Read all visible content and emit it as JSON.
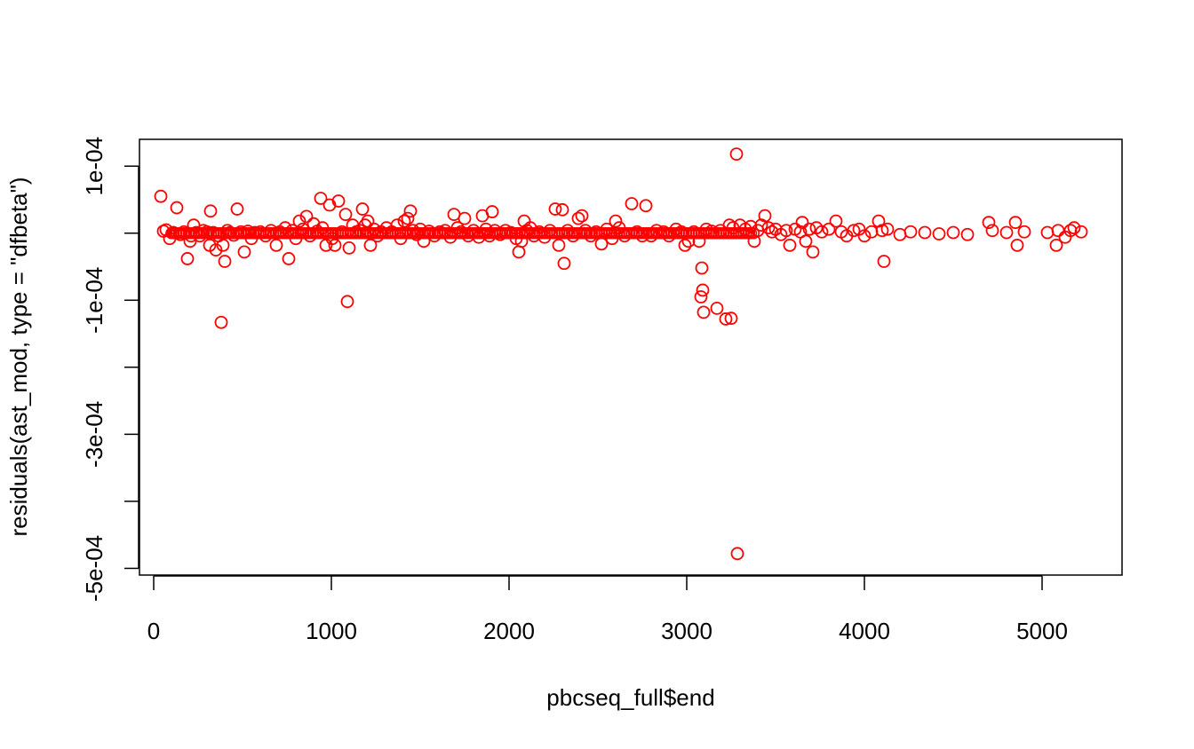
{
  "chart_data": {
    "type": "scatter",
    "title": "",
    "xlabel": "pbcseq_full$end",
    "ylabel": "residuals(ast_mod, type = \"dfbeta\")",
    "xlim": [
      -80,
      5450
    ],
    "ylim": [
      -0.00051,
      0.00014
    ],
    "x_ticks": [
      0,
      1000,
      2000,
      3000,
      4000,
      5000
    ],
    "x_tick_labels": [
      "0",
      "1000",
      "2000",
      "3000",
      "4000",
      "5000"
    ],
    "y_ticks": [
      -0.0005,
      -0.0004,
      -0.0003,
      -0.0002,
      -0.0001,
      0,
      0.0001
    ],
    "y_tick_labels": [
      "-5e-04",
      "",
      "-3e-04",
      "",
      "-1e-04",
      "",
      "1e-04"
    ],
    "grid": false,
    "legend": "none",
    "point_color": "#ff0000",
    "series": [
      {
        "points": [
          [
            40,
            5.5e-05
          ],
          [
            55,
            3e-06
          ],
          [
            70,
            5e-06
          ],
          [
            90,
            -8e-06
          ],
          [
            110,
            1e-06
          ],
          [
            130,
            3.8e-05
          ],
          [
            150,
            -2e-06
          ],
          [
            170,
            2e-06
          ],
          [
            190,
            -3.8e-05
          ],
          [
            205,
            -1.2e-05
          ],
          [
            210,
            -4e-06
          ],
          [
            225,
            1.2e-05
          ],
          [
            240,
            1e-06
          ],
          [
            260,
            -4e-06
          ],
          [
            280,
            4e-06
          ],
          [
            300,
            2e-06
          ],
          [
            315,
            -1.8e-05
          ],
          [
            320,
            3.3e-05
          ],
          [
            335,
            1e-06
          ],
          [
            350,
            -2.5e-05
          ],
          [
            365,
            -4e-06
          ],
          [
            380,
            -0.000133
          ],
          [
            390,
            -1.8e-05
          ],
          [
            400,
            -4.2e-05
          ],
          [
            415,
            4e-06
          ],
          [
            430,
            1e-06
          ],
          [
            450,
            -3e-06
          ],
          [
            470,
            3.6e-05
          ],
          [
            490,
            2e-06
          ],
          [
            510,
            -2.8e-05
          ],
          [
            530,
            3e-06
          ],
          [
            550,
            -8e-06
          ],
          [
            570,
            1e-06
          ],
          [
            600,
            2e-06
          ],
          [
            630,
            -4e-06
          ],
          [
            660,
            4e-06
          ],
          [
            690,
            -1.8e-05
          ],
          [
            710,
            2e-06
          ],
          [
            740,
            8e-06
          ],
          [
            760,
            -3.8e-05
          ],
          [
            780,
            4e-06
          ],
          [
            800,
            -8e-06
          ],
          [
            820,
            1.8e-05
          ],
          [
            840,
            6e-06
          ],
          [
            860,
            2.5e-05
          ],
          [
            880,
            -4e-06
          ],
          [
            900,
            1.4e-05
          ],
          [
            920,
            3e-06
          ],
          [
            940,
            5.2e-05
          ],
          [
            950,
            8e-06
          ],
          [
            970,
            -1.8e-05
          ],
          [
            990,
            4.2e-05
          ],
          [
            1005,
            -8e-06
          ],
          [
            1020,
            -1.8e-05
          ],
          [
            1040,
            4.8e-05
          ],
          [
            1060,
            2e-06
          ],
          [
            1080,
            2.8e-05
          ],
          [
            1090,
            -0.000102
          ],
          [
            1100,
            -2.2e-05
          ],
          [
            1120,
            1.2e-05
          ],
          [
            1140,
            2e-06
          ],
          [
            1160,
            4e-06
          ],
          [
            1175,
            3.6e-05
          ],
          [
            1190,
            1.2e-05
          ],
          [
            1205,
            1.8e-05
          ],
          [
            1220,
            -1.8e-05
          ],
          [
            1240,
            6e-06
          ],
          [
            1260,
            -4e-06
          ],
          [
            1280,
            2e-06
          ],
          [
            1310,
            8e-06
          ],
          [
            1340,
            2e-06
          ],
          [
            1370,
            1.2e-05
          ],
          [
            1390,
            -8e-06
          ],
          [
            1410,
            1.8e-05
          ],
          [
            1430,
            2.2e-05
          ],
          [
            1445,
            3.3e-05
          ],
          [
            1460,
            4e-06
          ],
          [
            1480,
            -2e-06
          ],
          [
            1500,
            6e-06
          ],
          [
            1520,
            -1.2e-05
          ],
          [
            1550,
            3e-06
          ],
          [
            1580,
            -4e-06
          ],
          [
            1610,
            2e-06
          ],
          [
            1640,
            4e-06
          ],
          [
            1670,
            -6e-06
          ],
          [
            1690,
            2.8e-05
          ],
          [
            1710,
            8e-06
          ],
          [
            1730,
            2e-06
          ],
          [
            1750,
            2.2e-05
          ],
          [
            1770,
            -4e-06
          ],
          [
            1800,
            4e-06
          ],
          [
            1830,
            -6e-06
          ],
          [
            1850,
            2.6e-05
          ],
          [
            1870,
            6e-06
          ],
          [
            1890,
            -4e-06
          ],
          [
            1905,
            3.2e-05
          ],
          [
            1920,
            4e-06
          ],
          [
            1950,
            -2e-06
          ],
          [
            1980,
            4e-06
          ],
          [
            2010,
            1e-06
          ],
          [
            2040,
            -8e-06
          ],
          [
            2055,
            -2.8e-05
          ],
          [
            2070,
            -1.2e-05
          ],
          [
            2085,
            1.8e-05
          ],
          [
            2100,
            4e-06
          ],
          [
            2120,
            8e-06
          ],
          [
            2140,
            -4e-06
          ],
          [
            2170,
            2e-06
          ],
          [
            2200,
            -6e-06
          ],
          [
            2230,
            4e-06
          ],
          [
            2260,
            3.6e-05
          ],
          [
            2280,
            -1.8e-05
          ],
          [
            2300,
            3.5e-05
          ],
          [
            2310,
            -4.5e-05
          ],
          [
            2330,
            4e-06
          ],
          [
            2360,
            -4e-06
          ],
          [
            2390,
            2.2e-05
          ],
          [
            2410,
            2.6e-05
          ],
          [
            2430,
            4e-06
          ],
          [
            2460,
            -4e-06
          ],
          [
            2490,
            2e-06
          ],
          [
            2520,
            -1.6e-05
          ],
          [
            2550,
            6e-06
          ],
          [
            2580,
            -8e-06
          ],
          [
            2600,
            1.8e-05
          ],
          [
            2620,
            8e-06
          ],
          [
            2650,
            -4e-06
          ],
          [
            2690,
            4.4e-05
          ],
          [
            2720,
            2e-06
          ],
          [
            2750,
            -4e-06
          ],
          [
            2770,
            4.1e-05
          ],
          [
            2800,
            -4e-06
          ],
          [
            2830,
            4e-06
          ],
          [
            2870,
            2e-06
          ],
          [
            2900,
            -4e-06
          ],
          [
            2940,
            6e-06
          ],
          [
            2970,
            2e-06
          ],
          [
            2990,
            -1.8e-05
          ],
          [
            3010,
            -1.2e-05
          ],
          [
            3040,
            2e-06
          ],
          [
            3070,
            -1.2e-05
          ],
          [
            3080,
            -9.5e-05
          ],
          [
            3085,
            -5.2e-05
          ],
          [
            3090,
            -8.5e-05
          ],
          [
            3095,
            -0.000118
          ],
          [
            3110,
            6e-06
          ],
          [
            3140,
            3e-06
          ],
          [
            3170,
            -0.000112
          ],
          [
            3190,
            4e-06
          ],
          [
            3220,
            -0.000128
          ],
          [
            3240,
            1.2e-05
          ],
          [
            3250,
            -0.000127
          ],
          [
            3260,
            8e-06
          ],
          [
            3280,
            0.000118
          ],
          [
            3285,
            -0.000478
          ],
          [
            3300,
            1.2e-05
          ],
          [
            3330,
            6e-06
          ],
          [
            3360,
            1e-05
          ],
          [
            3380,
            -1.2e-05
          ],
          [
            3400,
            4e-06
          ],
          [
            3420,
            1.2e-05
          ],
          [
            3440,
            2.6e-05
          ],
          [
            3460,
            8e-06
          ],
          [
            3480,
            2e-06
          ],
          [
            3500,
            6e-06
          ],
          [
            3530,
            -2e-06
          ],
          [
            3560,
            4e-06
          ],
          [
            3580,
            -1.8e-05
          ],
          [
            3610,
            6e-06
          ],
          [
            3640,
            2e-06
          ],
          [
            3650,
            1.6e-05
          ],
          [
            3670,
            -1.2e-05
          ],
          [
            3690,
            6e-06
          ],
          [
            3710,
            -2.8e-05
          ],
          [
            3730,
            8e-06
          ],
          [
            3760,
            2e-06
          ],
          [
            3800,
            6e-06
          ],
          [
            3840,
            1.8e-05
          ],
          [
            3870,
            2e-06
          ],
          [
            3900,
            -4e-06
          ],
          [
            3940,
            4e-06
          ],
          [
            3970,
            6e-06
          ],
          [
            4000,
            -4e-06
          ],
          [
            4040,
            2e-06
          ],
          [
            4080,
            1.8e-05
          ],
          [
            4100,
            4e-06
          ],
          [
            4110,
            -4.2e-05
          ],
          [
            4130,
            6e-06
          ],
          [
            4200,
            -2e-06
          ],
          [
            4260,
            2e-06
          ],
          [
            4340,
            1e-06
          ],
          [
            4420,
            -1e-06
          ],
          [
            4500,
            1e-06
          ],
          [
            4580,
            -2e-06
          ],
          [
            4700,
            1.6e-05
          ],
          [
            4720,
            4e-06
          ],
          [
            4800,
            1e-06
          ],
          [
            4850,
            1.6e-05
          ],
          [
            4860,
            -1.8e-05
          ],
          [
            4900,
            2e-06
          ],
          [
            5030,
            1e-06
          ],
          [
            5080,
            -1.8e-05
          ],
          [
            5090,
            4e-06
          ],
          [
            5130,
            -6e-06
          ],
          [
            5160,
            4e-06
          ],
          [
            5180,
            8e-06
          ],
          [
            5220,
            2e-06
          ]
        ]
      }
    ]
  }
}
